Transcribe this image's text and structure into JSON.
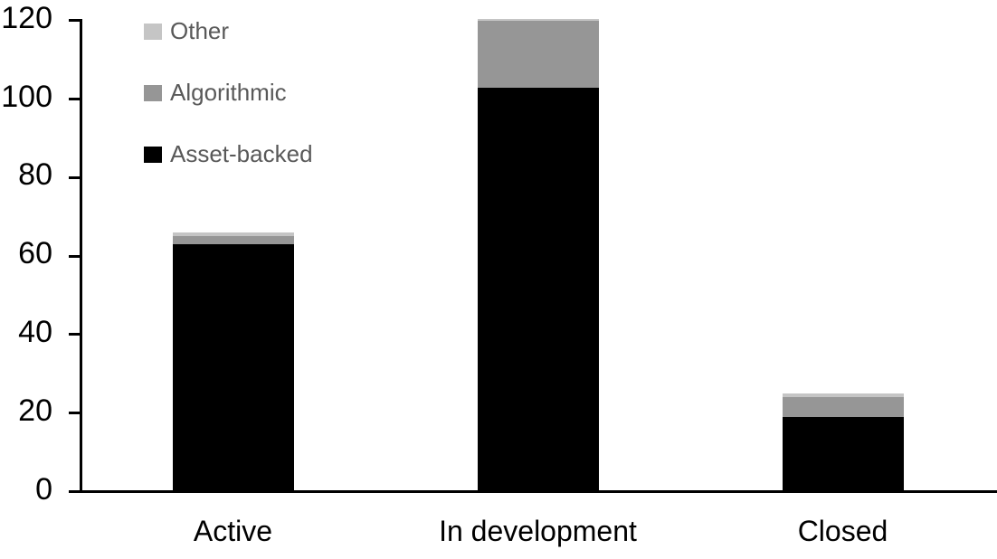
{
  "chart_data": {
    "type": "bar",
    "stacked": true,
    "title": "",
    "xlabel": "",
    "ylabel": "",
    "categories": [
      "Active",
      "In development",
      "Closed"
    ],
    "series": [
      {
        "name": "Asset-backed",
        "color": "#000000",
        "values": [
          63,
          103,
          19
        ]
      },
      {
        "name": "Algorithmic",
        "color": "#969696",
        "values": [
          2,
          17,
          5
        ]
      },
      {
        "name": "Other",
        "color": "#c5c5c5",
        "values": [
          1,
          0.5,
          1
        ]
      }
    ],
    "legend": [
      {
        "label": "Other",
        "color": "#c5c5c5"
      },
      {
        "label": "Algorithmic",
        "color": "#969696"
      },
      {
        "label": "Asset-backed",
        "color": "#000000"
      }
    ],
    "legend_position": "top-left",
    "ylim": [
      0,
      120
    ],
    "yticks": [
      0,
      20,
      40,
      60,
      80,
      100,
      120
    ],
    "grid": false
  },
  "colors": {
    "background": "#ffffff",
    "axis_line": "#000000",
    "axis_label_text": "#000000",
    "legend_text": "#595959"
  }
}
